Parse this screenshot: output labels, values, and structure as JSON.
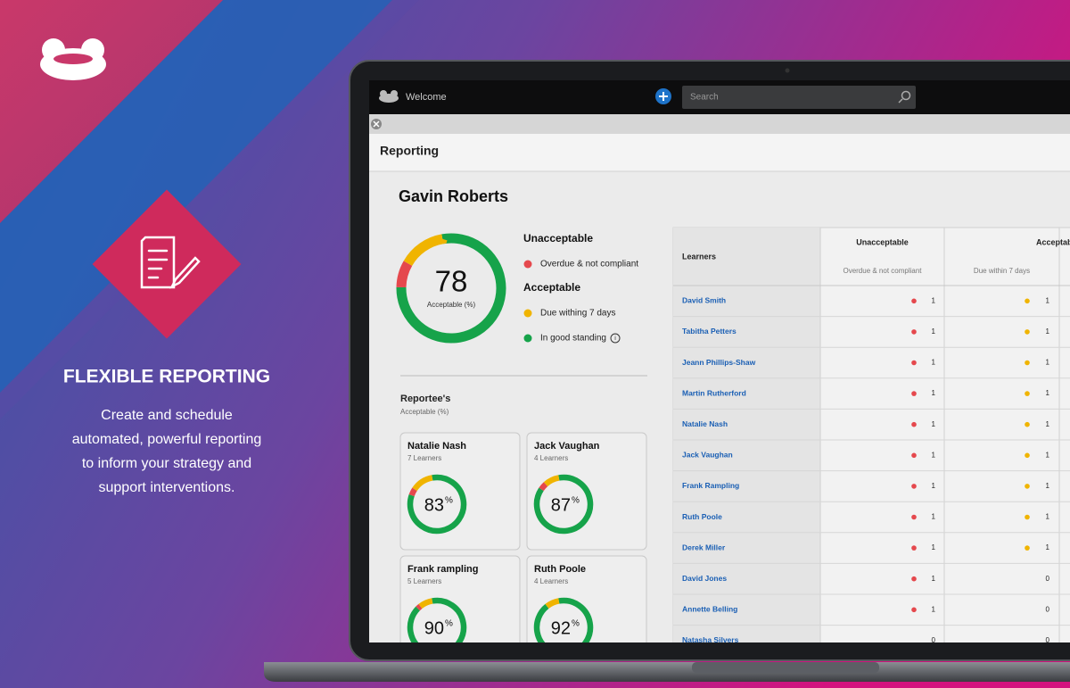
{
  "promo": {
    "heading": "FLEXIBLE REPORTING",
    "description": [
      "Create and schedule",
      "automated, powerful reporting",
      "to inform your strategy and",
      "support interventions."
    ]
  },
  "app": {
    "welcome": "Welcome",
    "search_placeholder": "Search",
    "page_title": "Reporting"
  },
  "summary": {
    "name": "Gavin Roberts",
    "score": 78,
    "score_label": "Acceptable (%)",
    "segments": [
      {
        "color": "#16a34a",
        "value": 78
      },
      {
        "color": "#e5484d",
        "value": 8
      },
      {
        "color": "#f0b400",
        "value": 14
      }
    ]
  },
  "legend": [
    {
      "group": "Unacceptable",
      "items": [
        {
          "label": "Overdue & not compliant",
          "color": "#e5484d"
        }
      ]
    },
    {
      "group": "Acceptable",
      "items": [
        {
          "label": "Due withing 7 days",
          "color": "#f0b400"
        },
        {
          "label": "In good standing",
          "color": "#16a34a"
        }
      ]
    }
  ],
  "reportees": {
    "title": "Reportee's",
    "subtitle": "Acceptable (%)",
    "unit": "%",
    "cards": [
      {
        "name": "Natalie Nash",
        "learners": "7 Learners",
        "score": 83,
        "segments": [
          {
            "color": "#16a34a",
            "value": 83
          },
          {
            "color": "#e5484d",
            "value": 4
          },
          {
            "color": "#f0b400",
            "value": 13
          }
        ]
      },
      {
        "name": "Jack Vaughan",
        "learners": "4 Learners",
        "score": 87,
        "segments": [
          {
            "color": "#16a34a",
            "value": 87
          },
          {
            "color": "#e5484d",
            "value": 4
          },
          {
            "color": "#f0b400",
            "value": 9
          }
        ]
      },
      {
        "name": "Frank rampling",
        "learners": "5 Learners",
        "score": 90,
        "segments": [
          {
            "color": "#16a34a",
            "value": 90
          },
          {
            "color": "#e5484d",
            "value": 2
          },
          {
            "color": "#f0b400",
            "value": 8
          }
        ]
      },
      {
        "name": "Ruth Poole",
        "learners": "4 Learners",
        "score": 92,
        "segments": [
          {
            "color": "#16a34a",
            "value": 92
          },
          {
            "color": "#f0b400",
            "value": 8
          }
        ]
      }
    ]
  },
  "table": {
    "headers": {
      "learners": "Learners",
      "unacceptable": "Unacceptable",
      "unacceptable_sub": "Overdue & not compliant",
      "acceptable": "Acceptable",
      "acceptable_sub": "Due within 7 days"
    },
    "dot_colors": {
      "unacceptable": "#e5484d",
      "acceptable": "#f0b400"
    },
    "rows": [
      {
        "name": "David Smith",
        "unacceptable": 1,
        "acceptable": 1
      },
      {
        "name": "Tabitha Petters",
        "unacceptable": 1,
        "acceptable": 1
      },
      {
        "name": "Jeann Phillips-Shaw",
        "unacceptable": 1,
        "acceptable": 1
      },
      {
        "name": "Martin Rutherford",
        "unacceptable": 1,
        "acceptable": 1
      },
      {
        "name": "Natalie Nash",
        "unacceptable": 1,
        "acceptable": 1
      },
      {
        "name": "Jack Vaughan",
        "unacceptable": 1,
        "acceptable": 1
      },
      {
        "name": "Frank Rampling",
        "unacceptable": 1,
        "acceptable": 1
      },
      {
        "name": "Ruth Poole",
        "unacceptable": 1,
        "acceptable": 1
      },
      {
        "name": "Derek Miller",
        "unacceptable": 1,
        "acceptable": 1
      },
      {
        "name": "David Jones",
        "unacceptable": 1,
        "acceptable": 0
      },
      {
        "name": "Annette Belling",
        "unacceptable": 1,
        "acceptable": 0
      },
      {
        "name": "Natasha Silvers",
        "unacceptable": 0,
        "acceptable": 0
      }
    ]
  }
}
